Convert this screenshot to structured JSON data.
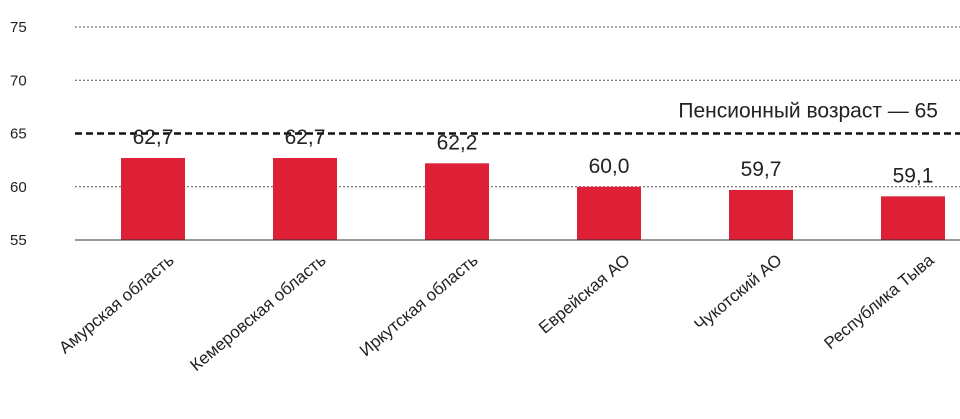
{
  "chart_data": {
    "type": "bar",
    "categories": [
      "Амурская область",
      "Кемеровская область",
      "Иркутская область",
      "Еврейская АО",
      "Чукотский АО",
      "Республика Тыва"
    ],
    "values": [
      62.7,
      62.7,
      62.2,
      60.0,
      59.7,
      59.1
    ],
    "value_labels": [
      "62,7",
      "62,7",
      "62,2",
      "60,0",
      "59,7",
      "59,1"
    ],
    "ylim": [
      55,
      75
    ],
    "yticks": [
      55,
      60,
      65,
      70,
      75
    ],
    "ytick_labels": [
      "55",
      "60",
      "65",
      "70",
      "75"
    ],
    "grid": true,
    "bar_color": "#dd2035",
    "reference_line": {
      "value": 65,
      "label": "Пенсионный возраст — 65"
    }
  }
}
